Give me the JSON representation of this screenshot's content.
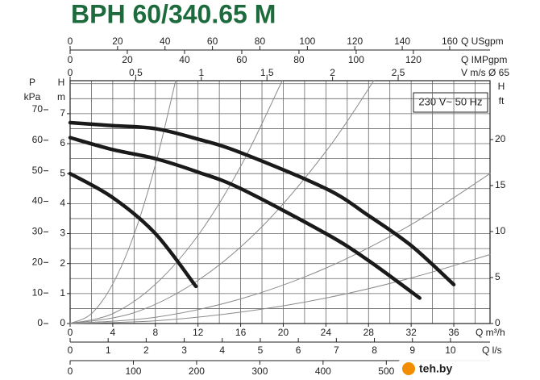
{
  "chart_data": {
    "type": "line",
    "title": "BPH 60/340.65 M",
    "annotation": "230 V~ 50 Hz",
    "watermark": "teh.by",
    "x_label": "Q m³/h",
    "y_label": [
      "H",
      "m"
    ],
    "xlim": [
      0,
      39.4
    ],
    "ylim": [
      0,
      8.1
    ],
    "xticks": [
      0,
      4,
      8,
      12,
      16,
      20,
      24,
      28,
      32,
      36
    ],
    "yticks": [
      0,
      1,
      2,
      3,
      4,
      5,
      6,
      7
    ],
    "x_grid": [
      2,
      4,
      6,
      8,
      10,
      12,
      14,
      16,
      18,
      20,
      22,
      24,
      26,
      28,
      30,
      32,
      34,
      36,
      38
    ],
    "y_grid": [
      0.5,
      1,
      1.5,
      2,
      2.5,
      3,
      3.5,
      4,
      4.5,
      5,
      5.5,
      6,
      6.5,
      7,
      7.5,
      8
    ],
    "series": [
      {
        "color": "#1a1a1a",
        "x": [
          0,
          4,
          8,
          11.8
        ],
        "values": [
          5.0,
          4.2,
          3.0,
          1.24
        ]
      },
      {
        "color": "#1a1a1a",
        "x": [
          0,
          4,
          8,
          12,
          16,
          24,
          28,
          32.8
        ],
        "values": [
          6.2,
          5.8,
          5.5,
          5.05,
          4.5,
          3.0,
          2.1,
          0.85
        ]
      },
      {
        "color": "#1a1a1a",
        "x": [
          0,
          4,
          8,
          12,
          16,
          24,
          28,
          32,
          36
        ],
        "values": [
          6.7,
          6.6,
          6.5,
          6.15,
          5.7,
          4.5,
          3.6,
          2.6,
          1.3
        ]
      }
    ],
    "system_curves": [
      {
        "color": "#8a8a8a",
        "x": [
          0,
          2,
          4,
          6,
          8,
          9.9
        ],
        "values": [
          0,
          0.33,
          1.32,
          2.97,
          5.29,
          8.1
        ]
      },
      {
        "color": "#8a8a8a",
        "x": [
          0,
          4,
          8,
          12,
          16,
          19.9
        ],
        "values": [
          0,
          0.33,
          1.31,
          2.94,
          5.24,
          8.1
        ]
      },
      {
        "color": "#8a8a8a",
        "x": [
          0,
          6,
          12,
          18,
          24,
          28.5
        ],
        "values": [
          0,
          0.36,
          1.44,
          3.23,
          5.74,
          8.1
        ]
      },
      {
        "color": "#8a8a8a",
        "x": [
          0,
          8,
          16,
          24,
          32,
          39.4
        ],
        "values": [
          0,
          0.21,
          0.82,
          1.85,
          3.3,
          5.0
        ]
      },
      {
        "color": "#8a8a8a",
        "x": [
          0,
          8,
          16,
          24,
          32,
          39.4
        ],
        "values": [
          0,
          0.09,
          0.38,
          0.85,
          1.52,
          2.3
        ]
      }
    ],
    "extra_axes": [
      {
        "side": "top",
        "label": "Q USgpm",
        "lim": [
          0,
          177
        ],
        "ticks": [
          0,
          20,
          40,
          60,
          80,
          100,
          120,
          140,
          160
        ]
      },
      {
        "side": "top",
        "label": "Q IMPgpm",
        "lim": [
          0,
          146.8
        ],
        "ticks": [
          0,
          20,
          40,
          60,
          80,
          100,
          120
        ]
      },
      {
        "side": "top",
        "label": "V m/s Ø 65",
        "lim": [
          0,
          3.2
        ],
        "ticks": [
          0,
          {
            "value": 0.5,
            "label": "0,5"
          },
          1,
          {
            "value": 1.5,
            "label": "1,5"
          },
          2,
          {
            "value": 2.5,
            "label": "2,5"
          }
        ]
      },
      {
        "side": "bottom",
        "label": "Q l/s",
        "lim": [
          0,
          11.04
        ],
        "ticks": [
          0,
          1,
          2,
          3,
          4,
          5,
          6,
          7,
          8,
          9,
          10
        ]
      },
      {
        "side": "bottom",
        "lim": [
          0,
          664
        ],
        "ticks": [
          0,
          100,
          200,
          300,
          400,
          500
        ]
      },
      {
        "side": "left",
        "label": [
          "P",
          "kPa"
        ],
        "lim": [
          0,
          79.5
        ],
        "ticks": [
          0,
          10,
          20,
          30,
          40,
          50,
          60,
          70
        ]
      },
      {
        "side": "right",
        "label": [
          "H",
          "ft"
        ],
        "lim": [
          0,
          26.4
        ],
        "ticks": [
          0,
          5,
          10,
          15,
          20
        ]
      }
    ]
  }
}
